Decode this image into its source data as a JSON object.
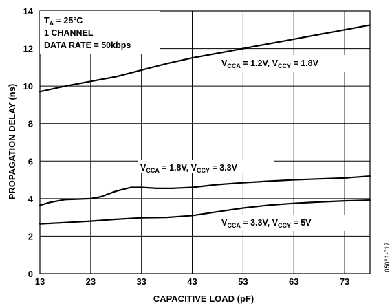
{
  "chart_data": {
    "type": "line",
    "xlabel": "CAPACITIVE LOAD (pF)",
    "ylabel": "PROPAGATION DELAY (ns)",
    "xlim": [
      13,
      78
    ],
    "ylim": [
      0,
      14
    ],
    "x_ticks": [
      13,
      23,
      33,
      43,
      53,
      63,
      73
    ],
    "y_ticks": [
      0,
      2,
      4,
      6,
      8,
      10,
      12,
      14
    ],
    "grid": true,
    "conditions": {
      "line1": {
        "main": "T",
        "sub": "A",
        "rest": " = 25°C"
      },
      "line2": "1 CHANNEL",
      "line3": "DATA RATE = 50kbps"
    },
    "figure_id": "05061-017",
    "series": [
      {
        "label": {
          "v1": "V",
          "s1": "CCA",
          "m": " = 1.2V, V",
          "s2": "CCY",
          "e": " = 1.8V"
        },
        "x": [
          13,
          18,
          23,
          28,
          33,
          38,
          43,
          48,
          53,
          58,
          63,
          68,
          73,
          78
        ],
        "y": [
          9.7,
          10.0,
          10.25,
          10.5,
          10.85,
          11.2,
          11.5,
          11.75,
          12.0,
          12.25,
          12.5,
          12.75,
          13.0,
          13.25
        ]
      },
      {
        "label": {
          "v1": "V",
          "s1": "CCA",
          "m": " = 1.8V, V",
          "s2": "CCY",
          "e": " = 3.3V"
        },
        "x": [
          13,
          15,
          18,
          23,
          25,
          28,
          31,
          33,
          36,
          39,
          43,
          48,
          53,
          58,
          63,
          68,
          73,
          78
        ],
        "y": [
          3.65,
          3.8,
          3.95,
          4.0,
          4.1,
          4.4,
          4.6,
          4.6,
          4.55,
          4.55,
          4.6,
          4.75,
          4.85,
          4.93,
          5.0,
          5.05,
          5.1,
          5.2
        ]
      },
      {
        "label": {
          "v1": "V",
          "s1": "CCA",
          "m": " = 3.3V, V",
          "s2": "CCY",
          "e": " = 5V"
        },
        "x": [
          13,
          18,
          23,
          28,
          33,
          38,
          43,
          48,
          53,
          58,
          63,
          68,
          73,
          78
        ],
        "y": [
          2.65,
          2.72,
          2.8,
          2.9,
          2.98,
          3.0,
          3.1,
          3.3,
          3.5,
          3.65,
          3.75,
          3.82,
          3.88,
          3.92
        ]
      }
    ]
  }
}
